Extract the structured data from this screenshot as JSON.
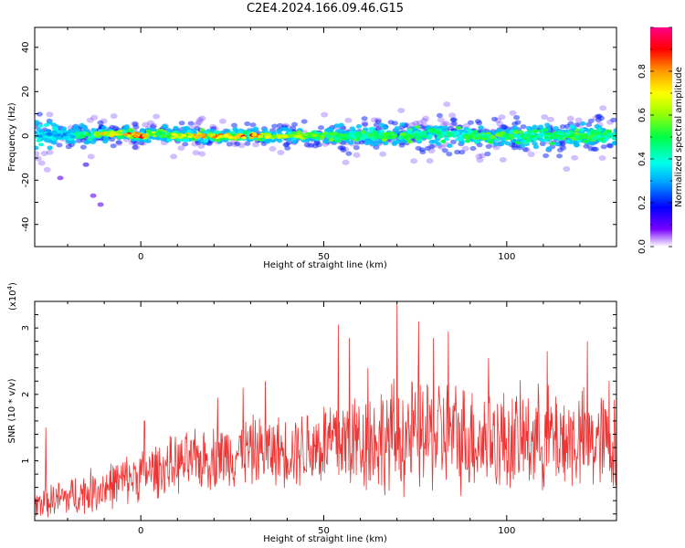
{
  "title": "C2E4.2024.166.09.46.G15",
  "colors": {
    "accent": "#ee3333",
    "frame": "#000000"
  },
  "chart_data": [
    {
      "type": "heatmap",
      "xlabel": "Height of straight line (km)",
      "ylabel": "Frequency (Hz)",
      "xlim": [
        -29,
        130
      ],
      "ylim": [
        -50,
        49
      ],
      "x_ticks": [
        "0",
        "50",
        "100"
      ],
      "x_tick_values": [
        0,
        50,
        100
      ],
      "y_ticks": [
        "40",
        "20",
        "0",
        "-20",
        "-40"
      ],
      "y_tick_values": [
        40,
        20,
        0,
        -20,
        -40
      ],
      "colorbar": {
        "label": "Normalized spectral amplitude",
        "ticks": [
          "0.0",
          "0.2",
          "0.4",
          "0.6",
          "0.8"
        ],
        "tick_values": [
          0.0,
          0.2,
          0.4,
          0.6,
          0.8
        ],
        "range": [
          0,
          1
        ]
      },
      "ridge": {
        "description_values": "frequency of the spectral peak vs height",
        "x": [
          -29,
          -20,
          -10,
          -5,
          0,
          5,
          10,
          20,
          30,
          40,
          50,
          60,
          70,
          80,
          90,
          100,
          110,
          120,
          130
        ],
        "center_hz": [
          1,
          0,
          1,
          1,
          0,
          1,
          0,
          0,
          0,
          0,
          0,
          0,
          0,
          1,
          0,
          0,
          0,
          0,
          0
        ],
        "halfwidth_hz": [
          7,
          4,
          3,
          3,
          3,
          3,
          3,
          3,
          3,
          3,
          3,
          4,
          4,
          5,
          4,
          4,
          5,
          5,
          6
        ],
        "peak_amplitude": [
          0.4,
          0.35,
          0.8,
          0.85,
          0.95,
          0.6,
          0.75,
          0.85,
          0.95,
          0.7,
          0.6,
          0.55,
          0.6,
          0.5,
          0.55,
          0.6,
          0.5,
          0.6,
          0.5
        ]
      },
      "outliers": [
        {
          "x": -13,
          "y": -27,
          "amplitude": 0.1
        },
        {
          "x": -11,
          "y": -31,
          "amplitude": 0.1
        },
        {
          "x": -22,
          "y": -19,
          "amplitude": 0.1
        },
        {
          "x": -15,
          "y": -13,
          "amplitude": 0.15
        }
      ]
    },
    {
      "type": "line",
      "xlabel": "Height of straight line (km)",
      "ylabel": "SNR (10 * v/v)",
      "y_multiplier_label": "(x10",
      "y_multiplier_exp": "4",
      "y_multiplier_close": ")",
      "xlim": [
        -29,
        130
      ],
      "ylim": [
        0.1,
        3.4
      ],
      "x_ticks": [
        "0",
        "50",
        "100"
      ],
      "x_tick_values": [
        0,
        50,
        100
      ],
      "y_ticks": [
        "1",
        "2",
        "3"
      ],
      "y_tick_values": [
        1,
        2,
        3
      ],
      "series": [
        {
          "color": "#ee3333",
          "envelope_x": [
            -29,
            -20,
            -10,
            0,
            10,
            20,
            30,
            40,
            50,
            55,
            60,
            70,
            80,
            90,
            100,
            110,
            120,
            130
          ],
          "envelope_mean": [
            0.35,
            0.45,
            0.6,
            0.8,
            0.95,
            1.05,
            1.15,
            1.15,
            1.25,
            1.3,
            1.3,
            1.35,
            1.4,
            1.35,
            1.3,
            1.35,
            1.3,
            1.25
          ],
          "envelope_spread": [
            0.25,
            0.35,
            0.4,
            0.45,
            0.5,
            0.55,
            0.6,
            0.6,
            0.8,
            0.9,
            0.9,
            1.0,
            1.0,
            0.95,
            0.9,
            0.9,
            0.9,
            0.85
          ],
          "peaks": [
            {
              "x": -26,
              "y": 1.5
            },
            {
              "x": 1,
              "y": 1.6
            },
            {
              "x": 21,
              "y": 1.95
            },
            {
              "x": 28,
              "y": 2.1
            },
            {
              "x": 34,
              "y": 2.2
            },
            {
              "x": 54,
              "y": 2.05
            },
            {
              "x": 54,
              "y": 3.05
            },
            {
              "x": 57,
              "y": 2.85
            },
            {
              "x": 62,
              "y": 2.4
            },
            {
              "x": 70,
              "y": 3.4
            },
            {
              "x": 76,
              "y": 3.1
            },
            {
              "x": 80,
              "y": 2.85
            },
            {
              "x": 84,
              "y": 2.95
            },
            {
              "x": 95,
              "y": 2.55
            },
            {
              "x": 111,
              "y": 2.65
            },
            {
              "x": 122,
              "y": 2.8
            },
            {
              "x": 128,
              "y": 2.2
            }
          ]
        }
      ]
    }
  ]
}
